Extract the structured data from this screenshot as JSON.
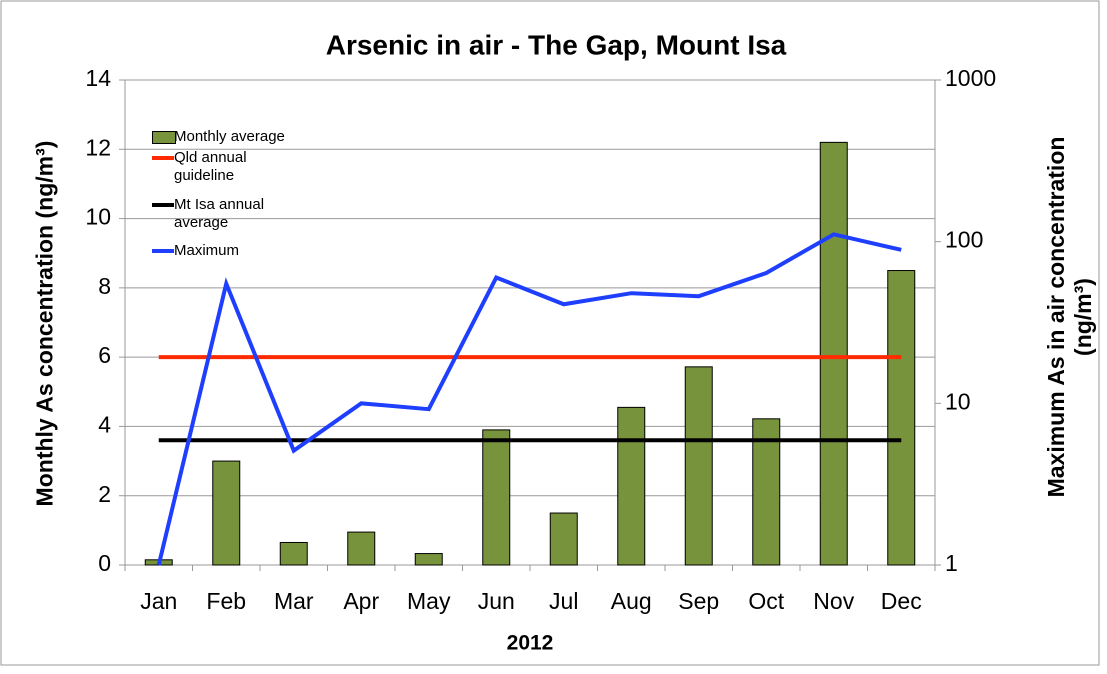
{
  "chart_data": {
    "type": "bar",
    "title": "Arsenic in air - The Gap, Mount Isa",
    "x_label": "2012",
    "y_label": "Monthly As concentration (ng/m³)",
    "y2_label": "Maximum As in air concentration (ng/m³)",
    "categories": [
      "Jan",
      "Feb",
      "Mar",
      "Apr",
      "May",
      "Jun",
      "Jul",
      "Aug",
      "Sep",
      "Oct",
      "Nov",
      "Dec"
    ],
    "series": [
      {
        "name": "Monthly average",
        "type": "bar",
        "color": "#77933c",
        "values": [
          0.15,
          3.0,
          0.65,
          0.95,
          0.33,
          3.9,
          1.5,
          4.55,
          5.72,
          4.22,
          12.2,
          8.5
        ]
      },
      {
        "name": "Qld annual guideline",
        "type": "line",
        "color": "#ff2a00",
        "values": [
          6,
          6,
          6,
          6,
          6,
          6,
          6,
          6,
          6,
          6,
          6,
          6
        ]
      },
      {
        "name": "Mt Isa annual average",
        "type": "line",
        "color": "#000000",
        "values": [
          3.6,
          3.6,
          3.6,
          3.6,
          3.6,
          3.6,
          3.6,
          3.6,
          3.6,
          3.6,
          3.6,
          3.6
        ]
      },
      {
        "name": "Maximum",
        "type": "line",
        "axis": "y2",
        "color": "#1f3fff",
        "values": [
          1.0,
          55,
          5.1,
          10,
          9.2,
          60,
          41,
          48,
          46,
          64,
          111,
          89
        ]
      }
    ],
    "ylim": [
      0,
      14
    ],
    "yticks": [
      0,
      2,
      4,
      6,
      8,
      10,
      12,
      14
    ],
    "y2lim": [
      1,
      1000
    ],
    "y2ticks": [
      1,
      10,
      100,
      1000
    ],
    "y2log": true,
    "grid": true,
    "legend": "top-left"
  }
}
